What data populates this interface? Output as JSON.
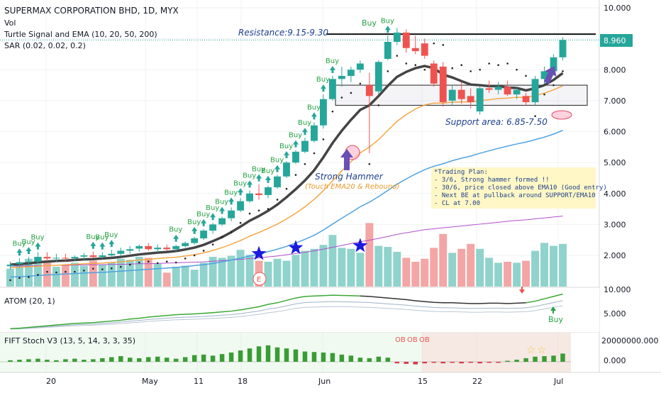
{
  "header": {
    "title": "SUPERMAX CORPORATION BHD, 1D, MYX",
    "indicators": [
      "Vol",
      "Turtle Signal and EMA (10, 20, 50, 200)",
      "SAR (0.02, 0.02, 0.2)"
    ]
  },
  "price_axis": {
    "ticks": [
      "10.000",
      "9.000",
      "8.000",
      "7.000",
      "6.000",
      "5.000",
      "4.000",
      "3.000",
      "2.000"
    ],
    "last_price": "8.960",
    "last_price_color": "#26a69a"
  },
  "date_axis": {
    "ticks": [
      "20",
      "May",
      "11",
      "18",
      "Jun",
      "15",
      "22",
      "Jul"
    ]
  },
  "annotations": {
    "resistance": "Resistance:9.15-9.30",
    "support": "Support area: 6.85-7.50",
    "hammer_title": "Strong Hammer",
    "hammer_sub": "(Touch EMA20 & Rebound)",
    "plan": [
      "*Trading Plan:",
      "- 3/6, Strong hammer formed !!",
      "- 30/6, price closed above EMA10 (Good entry)",
      "- Next BE at pullback around SUPPORT/EMA10",
      "- CL at 7.00"
    ],
    "buy": "Buy",
    "event_marker": "E",
    "ob": "OB"
  },
  "atom_panel": {
    "label": "ATOM (20, 1)",
    "ticks": [
      "10.000",
      "5.000"
    ],
    "buy": "Buy"
  },
  "stoch_panel": {
    "label": "FIFT Stoch V3 (13, 5, 14, 3, 3, 35)",
    "ticks": [
      "20000000.000",
      "0.000"
    ]
  },
  "colors": {
    "up": "#26a69a",
    "down": "#ef5350",
    "ema10": "#444444",
    "ema20": "#f5a742",
    "ema50": "#4fa3e0",
    "ema200": "#b04fc9",
    "vol_up": "#8fd3cc",
    "vol_down": "#f4a5a5",
    "annotation": "#1c3f8c"
  },
  "chart_data": {
    "type": "candlestick",
    "title": "SUPERMAX CORPORATION BHD, 1D, MYX",
    "candles": [
      {
        "o": 1.65,
        "h": 1.8,
        "l": 1.55,
        "c": 1.7
      },
      {
        "o": 1.72,
        "h": 1.9,
        "l": 1.62,
        "c": 1.78
      },
      {
        "o": 1.78,
        "h": 1.95,
        "l": 1.65,
        "c": 1.8
      },
      {
        "o": 1.8,
        "h": 2.1,
        "l": 1.72,
        "c": 1.95
      },
      {
        "o": 1.95,
        "h": 2.1,
        "l": 1.82,
        "c": 1.9
      },
      {
        "o": 1.9,
        "h": 2.05,
        "l": 1.8,
        "c": 1.92
      },
      {
        "o": 1.92,
        "h": 2.05,
        "l": 1.82,
        "c": 1.9
      },
      {
        "o": 1.9,
        "h": 2.0,
        "l": 1.82,
        "c": 1.95
      },
      {
        "o": 1.96,
        "h": 2.08,
        "l": 1.86,
        "c": 2.0
      },
      {
        "o": 2.0,
        "h": 2.12,
        "l": 1.92,
        "c": 1.95
      },
      {
        "o": 1.95,
        "h": 2.1,
        "l": 1.9,
        "c": 2.0
      },
      {
        "o": 2.0,
        "h": 2.18,
        "l": 1.93,
        "c": 2.05
      },
      {
        "o": 2.05,
        "h": 2.25,
        "l": 1.98,
        "c": 2.15
      },
      {
        "o": 2.15,
        "h": 2.3,
        "l": 2.05,
        "c": 2.2
      },
      {
        "o": 2.22,
        "h": 2.35,
        "l": 2.12,
        "c": 2.3
      },
      {
        "o": 2.3,
        "h": 2.4,
        "l": 2.15,
        "c": 2.2
      },
      {
        "o": 2.2,
        "h": 2.35,
        "l": 2.1,
        "c": 2.25
      },
      {
        "o": 2.25,
        "h": 2.35,
        "l": 2.15,
        "c": 2.2
      },
      {
        "o": 2.2,
        "h": 2.35,
        "l": 2.12,
        "c": 2.3
      },
      {
        "o": 2.3,
        "h": 2.45,
        "l": 2.25,
        "c": 2.4
      },
      {
        "o": 2.4,
        "h": 2.6,
        "l": 2.35,
        "c": 2.55
      },
      {
        "o": 2.55,
        "h": 2.85,
        "l": 2.5,
        "c": 2.8
      },
      {
        "o": 2.8,
        "h": 3.05,
        "l": 2.7,
        "c": 3.0
      },
      {
        "o": 3.0,
        "h": 3.25,
        "l": 2.95,
        "c": 3.2
      },
      {
        "o": 3.2,
        "h": 3.55,
        "l": 3.1,
        "c": 3.45
      },
      {
        "o": 3.45,
        "h": 3.85,
        "l": 3.4,
        "c": 3.75
      },
      {
        "o": 3.75,
        "h": 4.1,
        "l": 3.7,
        "c": 4.0
      },
      {
        "o": 4.0,
        "h": 4.3,
        "l": 3.8,
        "c": 3.95
      },
      {
        "o": 3.95,
        "h": 4.25,
        "l": 3.85,
        "c": 4.2
      },
      {
        "o": 4.2,
        "h": 4.6,
        "l": 4.15,
        "c": 4.55
      },
      {
        "o": 4.55,
        "h": 5.05,
        "l": 4.5,
        "c": 5.0
      },
      {
        "o": 5.0,
        "h": 5.4,
        "l": 4.95,
        "c": 5.35
      },
      {
        "o": 5.35,
        "h": 5.8,
        "l": 5.3,
        "c": 5.7
      },
      {
        "o": 5.7,
        "h": 6.3,
        "l": 5.65,
        "c": 6.2
      },
      {
        "o": 6.2,
        "h": 7.2,
        "l": 6.1,
        "c": 7.05
      },
      {
        "o": 7.05,
        "h": 7.8,
        "l": 7.0,
        "c": 7.7
      },
      {
        "o": 7.7,
        "h": 8.1,
        "l": 7.45,
        "c": 7.8
      },
      {
        "o": 7.8,
        "h": 8.1,
        "l": 7.6,
        "c": 8.0
      },
      {
        "o": 8.0,
        "h": 8.3,
        "l": 7.9,
        "c": 8.2
      },
      {
        "o": 7.5,
        "h": 7.9,
        "l": 5.3,
        "c": 7.15
      },
      {
        "o": 7.3,
        "h": 8.3,
        "l": 7.2,
        "c": 8.25
      },
      {
        "o": 8.35,
        "h": 9.1,
        "l": 8.3,
        "c": 8.9
      },
      {
        "o": 8.9,
        "h": 9.35,
        "l": 8.8,
        "c": 9.2
      },
      {
        "o": 9.2,
        "h": 9.3,
        "l": 8.55,
        "c": 8.7
      },
      {
        "o": 8.7,
        "h": 9.1,
        "l": 8.5,
        "c": 8.6
      },
      {
        "o": 8.85,
        "h": 9.0,
        "l": 8.35,
        "c": 8.45
      },
      {
        "o": 8.2,
        "h": 8.3,
        "l": 7.45,
        "c": 7.55
      },
      {
        "o": 8.1,
        "h": 8.25,
        "l": 6.8,
        "c": 6.95
      },
      {
        "o": 7.0,
        "h": 7.5,
        "l": 6.85,
        "c": 7.35
      },
      {
        "o": 7.35,
        "h": 7.6,
        "l": 6.9,
        "c": 7.05
      },
      {
        "o": 7.15,
        "h": 7.4,
        "l": 6.75,
        "c": 6.95
      },
      {
        "o": 6.65,
        "h": 7.45,
        "l": 6.55,
        "c": 7.4
      },
      {
        "o": 7.4,
        "h": 7.65,
        "l": 7.25,
        "c": 7.35
      },
      {
        "o": 7.35,
        "h": 7.6,
        "l": 7.2,
        "c": 7.45
      },
      {
        "o": 7.45,
        "h": 7.65,
        "l": 7.15,
        "c": 7.2
      },
      {
        "o": 7.2,
        "h": 7.45,
        "l": 7.05,
        "c": 7.35
      },
      {
        "o": 7.15,
        "h": 7.25,
        "l": 6.85,
        "c": 6.95
      },
      {
        "o": 6.95,
        "h": 7.8,
        "l": 6.85,
        "c": 7.7
      },
      {
        "o": 7.7,
        "h": 8.1,
        "l": 7.55,
        "c": 7.95
      },
      {
        "o": 7.95,
        "h": 8.5,
        "l": 7.85,
        "c": 8.4
      },
      {
        "o": 8.4,
        "h": 9.05,
        "l": 8.3,
        "c": 8.96
      }
    ],
    "volume": [
      {
        "v": 0.9,
        "up": true
      },
      {
        "v": 1.2,
        "up": true
      },
      {
        "v": 1.4,
        "up": true
      },
      {
        "v": 1.5,
        "up": true
      },
      {
        "v": 1.25,
        "up": false
      },
      {
        "v": 1.0,
        "up": true
      },
      {
        "v": 1.1,
        "up": false
      },
      {
        "v": 1.2,
        "up": true
      },
      {
        "v": 1.05,
        "up": true
      },
      {
        "v": 1.3,
        "up": false
      },
      {
        "v": 1.1,
        "up": true
      },
      {
        "v": 1.2,
        "up": true
      },
      {
        "v": 1.4,
        "up": true
      },
      {
        "v": 1.35,
        "up": true
      },
      {
        "v": 1.5,
        "up": true
      },
      {
        "v": 1.45,
        "up": false
      },
      {
        "v": 1.15,
        "up": true
      },
      {
        "v": 0.7,
        "up": false
      },
      {
        "v": 1.0,
        "up": true
      },
      {
        "v": 1.05,
        "up": true
      },
      {
        "v": 0.85,
        "up": true
      },
      {
        "v": 1.2,
        "up": true
      },
      {
        "v": 1.5,
        "up": true
      },
      {
        "v": 1.45,
        "up": true
      },
      {
        "v": 1.55,
        "up": true
      },
      {
        "v": 1.85,
        "up": true
      },
      {
        "v": 1.6,
        "up": true
      },
      {
        "v": 1.3,
        "up": false
      },
      {
        "v": 1.25,
        "up": true
      },
      {
        "v": 1.4,
        "up": true
      },
      {
        "v": 1.3,
        "up": true
      },
      {
        "v": 1.6,
        "up": true
      },
      {
        "v": 1.8,
        "up": true
      },
      {
        "v": 1.9,
        "up": true
      },
      {
        "v": 2.1,
        "up": true
      },
      {
        "v": 2.6,
        "up": true
      },
      {
        "v": 1.95,
        "up": true
      },
      {
        "v": 1.9,
        "up": true
      },
      {
        "v": 1.7,
        "up": true
      },
      {
        "v": 3.2,
        "up": false
      },
      {
        "v": 2.05,
        "up": true
      },
      {
        "v": 2.0,
        "up": true
      },
      {
        "v": 1.75,
        "up": true
      },
      {
        "v": 1.45,
        "up": false
      },
      {
        "v": 1.25,
        "up": false
      },
      {
        "v": 1.4,
        "up": false
      },
      {
        "v": 1.95,
        "up": false
      },
      {
        "v": 2.65,
        "up": false
      },
      {
        "v": 1.7,
        "up": true
      },
      {
        "v": 1.9,
        "up": false
      },
      {
        "v": 2.15,
        "up": false
      },
      {
        "v": 1.9,
        "up": true
      },
      {
        "v": 1.45,
        "up": true
      },
      {
        "v": 1.2,
        "up": true
      },
      {
        "v": 1.25,
        "up": false
      },
      {
        "v": 1.2,
        "up": true
      },
      {
        "v": 1.3,
        "up": false
      },
      {
        "v": 1.8,
        "up": true
      },
      {
        "v": 2.2,
        "up": true
      },
      {
        "v": 2.05,
        "up": true
      },
      {
        "v": 2.15,
        "up": true
      }
    ],
    "ema10": [
      1.7,
      1.72,
      1.74,
      1.78,
      1.8,
      1.82,
      1.83,
      1.85,
      1.87,
      1.88,
      1.9,
      1.92,
      1.95,
      1.99,
      2.03,
      2.06,
      2.09,
      2.11,
      2.14,
      2.19,
      2.25,
      2.34,
      2.46,
      2.59,
      2.75,
      2.93,
      3.12,
      3.27,
      3.44,
      3.64,
      3.88,
      4.14,
      4.42,
      4.75,
      5.17,
      5.63,
      6.03,
      6.38,
      6.7,
      6.85,
      7.15,
      7.48,
      7.77,
      7.93,
      8.05,
      8.12,
      8.05,
      7.84,
      7.75,
      7.63,
      7.52,
      7.5,
      7.47,
      7.47,
      7.42,
      7.41,
      7.33,
      7.4,
      7.5,
      7.67,
      7.89
    ],
    "ema20": [
      1.6,
      1.62,
      1.63,
      1.65,
      1.67,
      1.68,
      1.7,
      1.71,
      1.73,
      1.74,
      1.75,
      1.77,
      1.79,
      1.82,
      1.85,
      1.87,
      1.9,
      1.92,
      1.94,
      1.98,
      2.02,
      2.08,
      2.16,
      2.25,
      2.36,
      2.48,
      2.62,
      2.74,
      2.87,
      3.01,
      3.18,
      3.36,
      3.57,
      3.81,
      4.09,
      4.41,
      4.73,
      5.03,
      5.31,
      5.5,
      5.74,
      6.04,
      6.33,
      6.55,
      6.73,
      6.86,
      6.92,
      6.92,
      6.95,
      6.96,
      6.96,
      7.0,
      7.03,
      7.07,
      7.08,
      7.11,
      7.1,
      7.16,
      7.24,
      7.35,
      7.48
    ],
    "ema50": [
      1.3,
      1.31,
      1.33,
      1.35,
      1.37,
      1.38,
      1.4,
      1.41,
      1.43,
      1.44,
      1.45,
      1.47,
      1.49,
      1.51,
      1.53,
      1.55,
      1.57,
      1.59,
      1.61,
      1.64,
      1.67,
      1.7,
      1.74,
      1.79,
      1.85,
      1.91,
      1.98,
      2.04,
      2.12,
      2.2,
      2.29,
      2.4,
      2.52,
      2.65,
      2.82,
      3.01,
      3.2,
      3.38,
      3.57,
      3.72,
      3.9,
      4.1,
      4.3,
      4.47,
      4.63,
      4.77,
      4.88,
      4.96,
      5.06,
      5.14,
      5.21,
      5.3,
      5.38,
      5.46,
      5.53,
      5.6,
      5.66,
      5.74,
      5.82,
      5.92,
      6.04
    ],
    "ema200": [
      1.65,
      1.66,
      1.66,
      1.67,
      1.67,
      1.68,
      1.68,
      1.69,
      1.69,
      1.7,
      1.7,
      1.71,
      1.71,
      1.72,
      1.73,
      1.73,
      1.74,
      1.75,
      1.76,
      1.77,
      1.78,
      1.79,
      1.81,
      1.83,
      1.85,
      1.87,
      1.9,
      1.92,
      1.95,
      1.98,
      2.02,
      2.06,
      2.1,
      2.15,
      2.2,
      2.26,
      2.32,
      2.38,
      2.44,
      2.49,
      2.55,
      2.61,
      2.68,
      2.73,
      2.78,
      2.83,
      2.86,
      2.89,
      2.92,
      2.95,
      2.98,
      3.01,
      3.04,
      3.07,
      3.1,
      3.13,
      3.15,
      3.18,
      3.21,
      3.24,
      3.27
    ],
    "ylim": [
      1.4,
      10.2
    ],
    "resistance_level": 9.15,
    "support_zone": [
      6.85,
      7.5
    ],
    "buy_signal_index": [
      1,
      2,
      3,
      9,
      10,
      11,
      18,
      20,
      21,
      22,
      23,
      24,
      25,
      26,
      27,
      28,
      29,
      30,
      31,
      32,
      33,
      34,
      35,
      41
    ],
    "volume_stars_index": [
      27,
      31,
      38
    ],
    "atom": {
      "line": [
        0.5,
        0.6,
        0.8,
        1.0,
        1.2,
        1.4,
        1.6,
        1.8,
        1.9,
        2.0,
        2.2,
        2.4,
        2.6,
        2.9,
        3.1,
        3.4,
        3.6,
        3.8,
        4.0,
        4.1,
        4.2,
        4.35,
        4.5,
        4.7,
        4.9,
        5.2,
        5.6,
        6.0,
        6.6,
        7.0,
        7.6,
        8.2,
        8.6,
        8.7,
        8.8,
        8.9,
        8.85,
        8.8,
        8.7,
        8.6,
        8.4,
        8.2,
        8.0,
        7.8,
        7.5,
        7.3,
        7.1,
        7.0,
        7.0,
        6.9,
        6.8,
        6.8,
        6.9,
        6.9,
        6.8,
        6.9,
        7.0,
        7.4,
        8.0,
        8.6,
        9.2
      ],
      "ylim": [
        0,
        10
      ]
    },
    "stoch": {
      "bars": [
        1.5,
        2.0,
        2.5,
        3.0,
        2.0,
        1.5,
        2.5,
        3.0,
        2.0,
        2.5,
        3.5,
        4.5,
        5.5,
        4.0,
        3.5,
        4.5,
        5.0,
        4.0,
        3.0,
        4.5,
        6.5,
        7.0,
        6.0,
        7.5,
        9.0,
        11.0,
        13.0,
        15.0,
        16.0,
        14.0,
        13.0,
        12.0,
        10.0,
        9.5,
        9.0,
        8.5,
        7.0,
        6.0,
        4.0,
        3.5,
        5.0,
        4.0,
        -1.5,
        -2.0,
        -2.5,
        -1.5,
        -1.0,
        -1.5,
        -1.0,
        -1.5,
        -1.0,
        -1.5,
        -1.0,
        -1.0,
        1.0,
        2.0,
        3.5,
        5.0,
        5.5,
        6.0,
        8.0
      ],
      "ylim": [
        -4,
        22
      ]
    }
  }
}
